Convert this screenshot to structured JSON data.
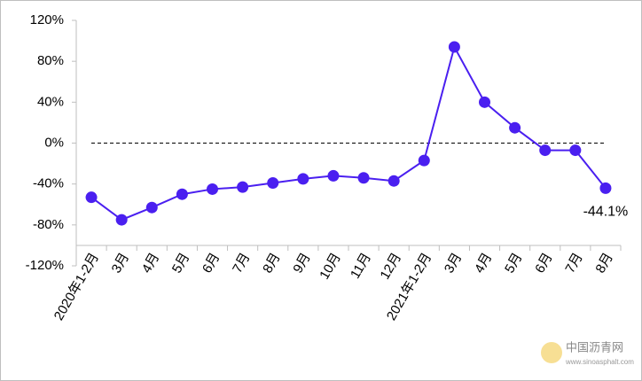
{
  "chart_data": {
    "type": "line",
    "categories": [
      "2020年1-2月",
      "3月",
      "4月",
      "5月",
      "6月",
      "7月",
      "8月",
      "9月",
      "10月",
      "11月",
      "12月",
      "2021年1-2月",
      "3月",
      "4月",
      "5月",
      "6月",
      "7月",
      "8月"
    ],
    "series": [
      {
        "color": "#4a1ff0",
        "values": [
          -53,
          -75,
          -63,
          -50,
          -45,
          -43,
          -39,
          -35,
          -32,
          -34,
          -37,
          -17,
          94,
          40,
          15,
          -7,
          -7,
          -44.1
        ],
        "value_labels": [
          null,
          null,
          null,
          null,
          null,
          null,
          null,
          null,
          null,
          null,
          null,
          null,
          null,
          null,
          null,
          null,
          null,
          "-44.1%"
        ]
      }
    ],
    "ylim": [
      -120,
      120
    ],
    "yticks": [
      {
        "value": -120,
        "label": "-120%"
      },
      {
        "value": -80,
        "label": "-80%"
      },
      {
        "value": -40,
        "label": "-40%"
      },
      {
        "value": 0,
        "label": "0%"
      },
      {
        "value": 40,
        "label": "40%"
      },
      {
        "value": 80,
        "label": "80%"
      },
      {
        "value": 120,
        "label": "120%"
      }
    ],
    "zero_line": true,
    "watermark": {
      "name": "中国沥青网",
      "url": "www.sinoasphalt.com"
    }
  }
}
